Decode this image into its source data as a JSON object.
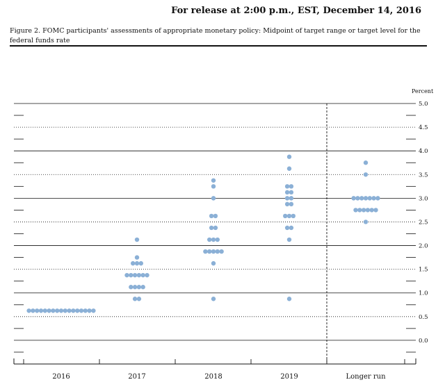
{
  "header": {
    "release_text": "For release at 2:00 p.m., EST, December 14, 2016"
  },
  "figure": {
    "caption": "Figure 2. FOMC participants' assessments of appropriate monetary policy: Midpoint of target range or target level for the federal funds rate"
  },
  "colors": {
    "dot": "#8bb0d6",
    "line": "#111111"
  },
  "chart_data": {
    "type": "scatter",
    "categories": [
      "2016",
      "2017",
      "2018",
      "2019",
      "Longer run"
    ],
    "ylabel": "Percent",
    "ylim": [
      -0.5,
      5.0
    ],
    "yticks": [
      {
        "value": 5.0,
        "label": "5.0"
      },
      {
        "value": 4.5,
        "label": "4.5"
      },
      {
        "value": 4.0,
        "label": "4.0"
      },
      {
        "value": 3.5,
        "label": "3.5"
      },
      {
        "value": 3.0,
        "label": "3.0"
      },
      {
        "value": 2.5,
        "label": "2.5"
      },
      {
        "value": 2.0,
        "label": "2.0"
      },
      {
        "value": 1.5,
        "label": "1.5"
      },
      {
        "value": 1.0,
        "label": "1.0"
      },
      {
        "value": 0.5,
        "label": "0.5"
      },
      {
        "value": 0.0,
        "label": "0.0"
      }
    ],
    "separator_before": "Longer run",
    "dots": [
      {
        "category": "2016",
        "value": 0.625,
        "count": 17
      },
      {
        "category": "2017",
        "value": 0.875,
        "count": 2
      },
      {
        "category": "2017",
        "value": 1.125,
        "count": 4
      },
      {
        "category": "2017",
        "value": 1.375,
        "count": 6
      },
      {
        "category": "2017",
        "value": 1.625,
        "count": 3
      },
      {
        "category": "2017",
        "value": 1.75,
        "count": 1
      },
      {
        "category": "2017",
        "value": 2.125,
        "count": 1
      },
      {
        "category": "2018",
        "value": 0.875,
        "count": 1
      },
      {
        "category": "2018",
        "value": 1.625,
        "count": 1
      },
      {
        "category": "2018",
        "value": 1.875,
        "count": 5
      },
      {
        "category": "2018",
        "value": 2.125,
        "count": 3
      },
      {
        "category": "2018",
        "value": 2.375,
        "count": 2
      },
      {
        "category": "2018",
        "value": 2.625,
        "count": 2
      },
      {
        "category": "2018",
        "value": 3.0,
        "count": 1
      },
      {
        "category": "2018",
        "value": 3.25,
        "count": 1
      },
      {
        "category": "2018",
        "value": 3.375,
        "count": 1
      },
      {
        "category": "2019",
        "value": 0.875,
        "count": 1
      },
      {
        "category": "2019",
        "value": 2.125,
        "count": 1
      },
      {
        "category": "2019",
        "value": 2.375,
        "count": 2
      },
      {
        "category": "2019",
        "value": 2.625,
        "count": 3
      },
      {
        "category": "2019",
        "value": 2.875,
        "count": 2
      },
      {
        "category": "2019",
        "value": 3.0,
        "count": 2
      },
      {
        "category": "2019",
        "value": 3.125,
        "count": 2
      },
      {
        "category": "2019",
        "value": 3.25,
        "count": 2
      },
      {
        "category": "2019",
        "value": 3.625,
        "count": 1
      },
      {
        "category": "2019",
        "value": 3.875,
        "count": 1
      },
      {
        "category": "Longer run",
        "value": 2.5,
        "count": 1
      },
      {
        "category": "Longer run",
        "value": 2.75,
        "count": 6
      },
      {
        "category": "Longer run",
        "value": 3.0,
        "count": 7
      },
      {
        "category": "Longer run",
        "value": 3.5,
        "count": 1
      },
      {
        "category": "Longer run",
        "value": 3.75,
        "count": 1
      }
    ],
    "grid": "solid at whole percents, dotted at half percents"
  }
}
